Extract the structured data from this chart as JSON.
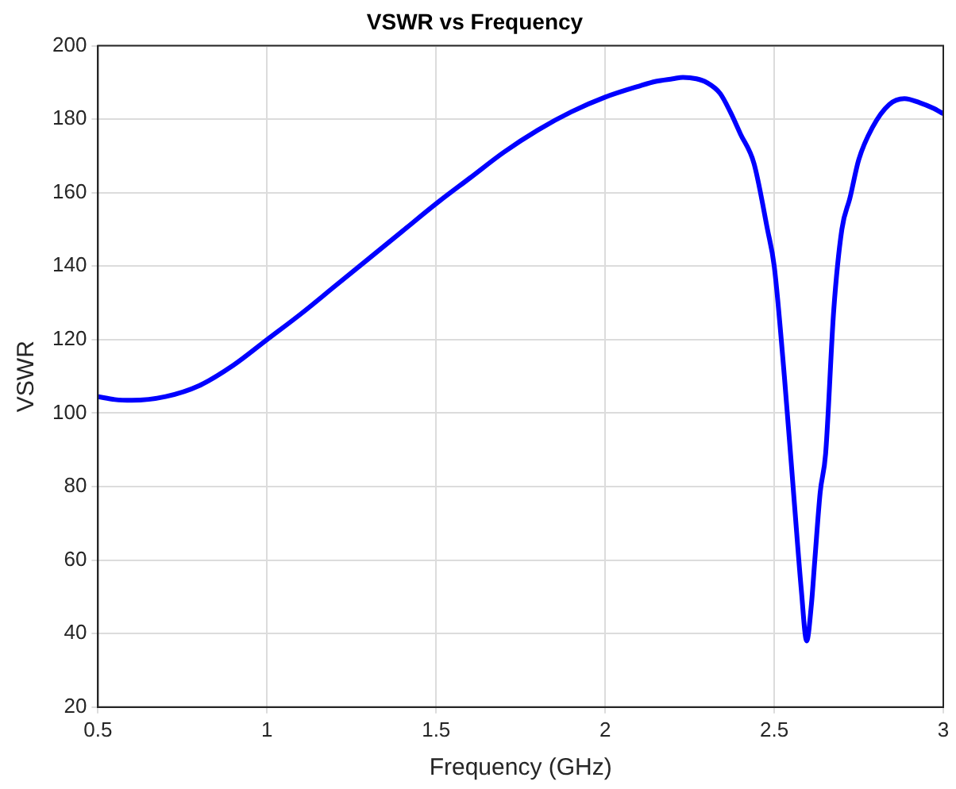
{
  "chart_data": {
    "type": "line",
    "title": "VSWR vs Frequency",
    "xlabel": "Frequency (GHz)",
    "ylabel": "VSWR",
    "series": [
      {
        "color": "#0000ff",
        "x": [
          0.5,
          0.55,
          0.6,
          0.7,
          0.8,
          0.9,
          1.0,
          1.1,
          1.2,
          1.3,
          1.4,
          1.5,
          1.6,
          1.7,
          1.8,
          1.9,
          2.0,
          2.1,
          2.15,
          2.2,
          2.23,
          2.27,
          2.3,
          2.34,
          2.37,
          2.4,
          2.44,
          2.48,
          2.5,
          2.53,
          2.56,
          2.58,
          2.596,
          2.61,
          2.62,
          2.636,
          2.652,
          2.676,
          2.7,
          2.724,
          2.75,
          2.79,
          2.84,
          2.885,
          2.93,
          2.97,
          3.0
        ],
        "values": [
          104.5,
          103.7,
          103.5,
          104.5,
          107.5,
          113,
          120,
          127,
          134.5,
          142,
          149.5,
          157,
          164,
          171,
          177,
          182,
          186,
          189,
          190.3,
          191,
          191.4,
          191,
          190,
          187,
          182,
          176,
          168,
          150,
          140,
          110,
          75,
          52,
          38,
          48,
          60,
          78.5,
          89,
          128,
          150,
          158.6,
          169,
          177.7,
          184,
          185.6,
          184.5,
          183,
          181.5
        ]
      }
    ],
    "xlim": [
      0.5,
      3
    ],
    "xticks": [
      0.5,
      1,
      1.5,
      2,
      2.5,
      3
    ],
    "ylim": [
      20,
      200
    ],
    "yticks": [
      20,
      40,
      60,
      80,
      100,
      120,
      140,
      160,
      180,
      200
    ],
    "grid": true,
    "legend": false,
    "marker": "none",
    "line_style": "solid"
  }
}
